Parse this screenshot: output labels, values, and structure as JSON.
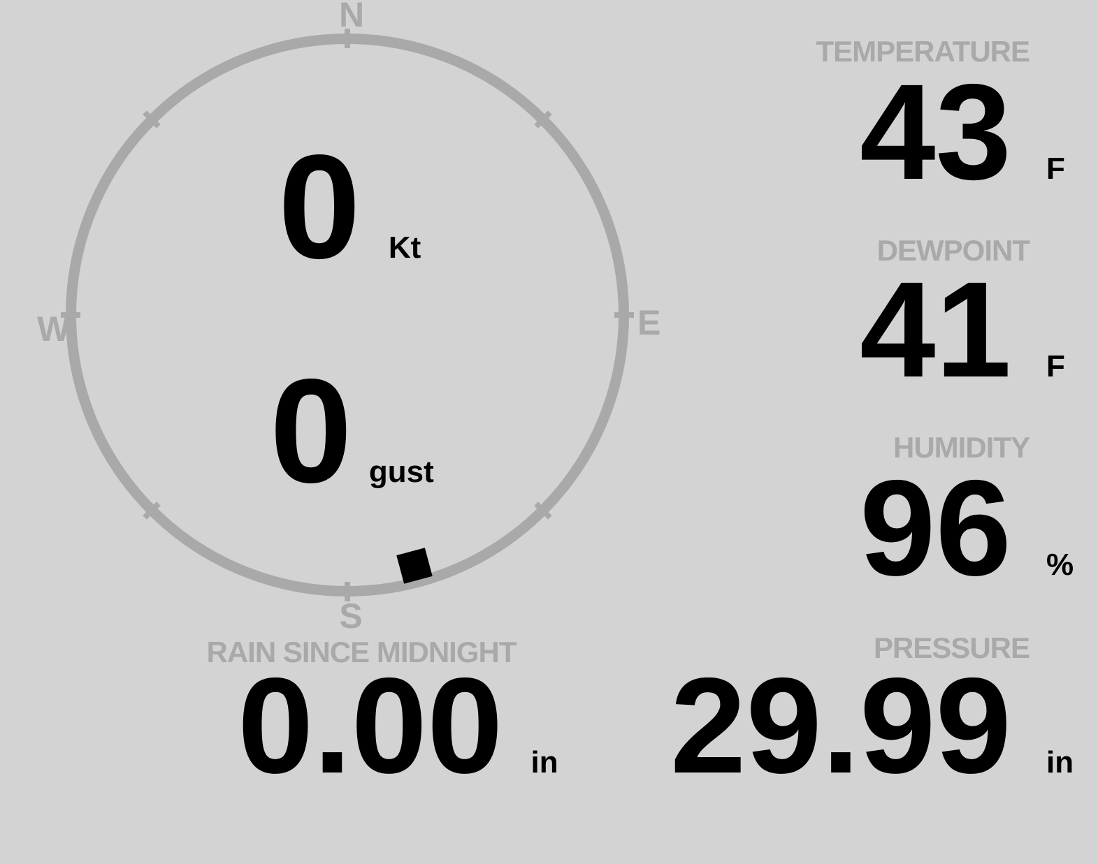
{
  "colors": {
    "background": "#d3d3d3",
    "muted": "#a9a9a9",
    "value": "#000000"
  },
  "compass": {
    "cardinal_labels": {
      "north": "N",
      "east": "E",
      "south": "S",
      "west": "W"
    },
    "wind_speed": {
      "value": "0",
      "unit": "Kt"
    },
    "wind_gust": {
      "value": "0",
      "unit": "gust"
    },
    "wind_direction_deg": 165
  },
  "metrics": [
    {
      "id": "temperature",
      "label": "TEMPERATURE",
      "value": "43",
      "unit": "F"
    },
    {
      "id": "dewpoint",
      "label": "DEWPOINT",
      "value": "41",
      "unit": "F"
    },
    {
      "id": "humidity",
      "label": "HUMIDITY",
      "value": "96",
      "unit": "%"
    },
    {
      "id": "pressure",
      "label": "PRESSURE",
      "value": "29.99",
      "unit": "in"
    }
  ],
  "rain": {
    "label": "RAIN SINCE MIDNIGHT",
    "value": "0.00",
    "unit": "in"
  }
}
